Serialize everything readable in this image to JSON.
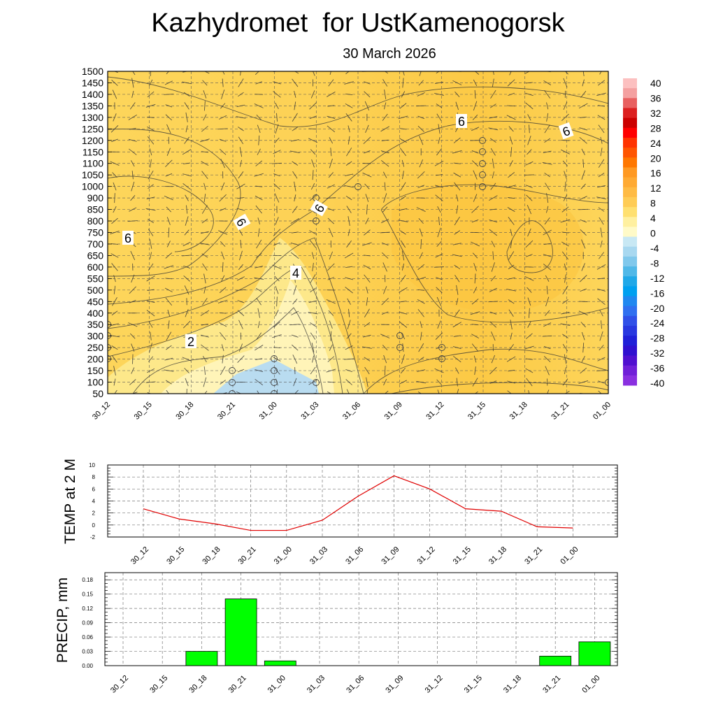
{
  "title": "Kazhydromet  for UstKamenogorsk",
  "subtitle": "30 March 2026",
  "chart_data": [
    {
      "type": "heatmap",
      "name": "cross-section",
      "x_labels": [
        "30_12",
        "30_15",
        "30_18",
        "30_21",
        "31_00",
        "31_03",
        "31_06",
        "31_09",
        "31_12",
        "31_15",
        "31_18",
        "31_21",
        "01_00"
      ],
      "y_labels": [
        "1500",
        "1450",
        "1400",
        "1350",
        "1300",
        "1250",
        "1200",
        "1150",
        "1100",
        "1050",
        "1000",
        "900",
        "850",
        "800",
        "750",
        "700",
        "650",
        "600",
        "550",
        "500",
        "450",
        "400",
        "350",
        "300",
        "250",
        "200",
        "150",
        "100",
        "50"
      ],
      "contour_labels": [
        "6",
        "6",
        "6",
        "6",
        "6",
        "4",
        "2"
      ],
      "colorbar": {
        "labels": [
          "40",
          "36",
          "32",
          "28",
          "24",
          "20",
          "16",
          "12",
          "8",
          "4",
          "0",
          "-4",
          "-8",
          "-12",
          "-16",
          "-20",
          "-24",
          "-28",
          "-32",
          "-36",
          "-40"
        ],
        "colors": [
          "#fcc0c0",
          "#f4a0a0",
          "#e86060",
          "#dc2020",
          "#cc0000",
          "#ff0000",
          "#ff3300",
          "#ff5500",
          "#ff7700",
          "#ff9922",
          "#ffaa33",
          "#ffbb44",
          "#ffcc55",
          "#ffe070",
          "#fff0a0",
          "#fffac8",
          "#c8e8f4",
          "#a8d8f0",
          "#80c8ec",
          "#50b8e8",
          "#20a8e8",
          "#00a0f0",
          "#2088f0",
          "#3070f0",
          "#3050e8",
          "#2838e0",
          "#2020d8",
          "#3010d0",
          "#5010d0",
          "#7020d8",
          "#8a30e0"
        ]
      }
    },
    {
      "type": "line",
      "name": "temperature",
      "ylabel": "TEMP at 2 M",
      "categories": [
        "30_12",
        "30_15",
        "30_18",
        "30_21",
        "31_00",
        "31_03",
        "31_06",
        "31_09",
        "31_12",
        "31_15",
        "31_18",
        "31_21",
        "01_00"
      ],
      "values": [
        2.7,
        1.0,
        0.2,
        -0.9,
        -0.9,
        0.8,
        4.8,
        8.2,
        6.0,
        2.7,
        2.3,
        -0.3,
        -0.5
      ],
      "y_ticks": [
        "10",
        "8",
        "6",
        "4",
        "2",
        "0",
        "-2"
      ],
      "ylim": [
        -2,
        10
      ],
      "color": "#e00000"
    },
    {
      "type": "bar",
      "name": "precipitation",
      "ylabel": "PRECIP, mm",
      "categories": [
        "30_12",
        "30_15",
        "30_18",
        "30_21",
        "31_00",
        "31_03",
        "31_06",
        "31_09",
        "31_12",
        "31_15",
        "31_18",
        "31_21",
        "01_00"
      ],
      "values": [
        0,
        0,
        0.03,
        0.14,
        0.01,
        0,
        0,
        0,
        0,
        0,
        0,
        0.02,
        0.05
      ],
      "y_ticks": [
        "0.18",
        "0.15",
        "0.12",
        "0.09",
        "0.06",
        "0.03",
        "0.00"
      ],
      "ylim": [
        0,
        0.195
      ],
      "color": "#00ff00"
    }
  ]
}
